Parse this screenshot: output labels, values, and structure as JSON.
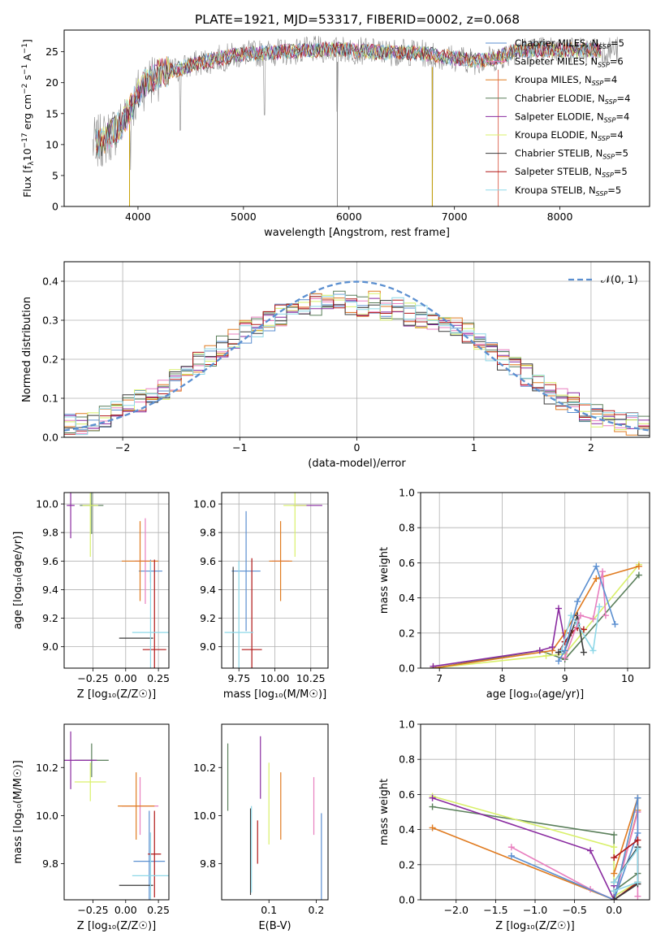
{
  "figure_title": "PLATE=1921, MJD=53317, FIBERID=0002, z=0.068",
  "colors": {
    "c1": "#5b8fd0",
    "c2": "#e87fbf",
    "c3": "#e07b20",
    "c4": "#5a7f5a",
    "c5": "#8a2ba0",
    "c6": "#d9f06a",
    "c7": "#3a3a3a",
    "c8": "#b01818",
    "c9": "#8ed8e8",
    "gauss": "#5b8fd0",
    "grid": "#b0b0b0",
    "spec": "#8a8a8a"
  },
  "chart_data": [
    {
      "id": "spectrum",
      "type": "line",
      "title": "PLATE=1921, MJD=53317, FIBERID=0002, z=0.068",
      "xlabel": "wavelength [Angstrom, rest frame]",
      "ylabel_main": "Flux [f",
      "ylabel_sub": "λ",
      "ylabel_tail": "10",
      "ylabel_exp1": "−17",
      "ylabel_mid": " erg cm",
      "ylabel_exp2": "−2",
      "ylabel_mid2": " s",
      "ylabel_exp3": "−1",
      "ylabel_end": " A",
      "ylabel_exp4": "−1",
      "ylabel_close": "]",
      "xlim": [
        3300,
        8850
      ],
      "ylim": [
        0,
        28.5
      ],
      "xticks": [
        "4000",
        "5000",
        "6000",
        "7000",
        "8000"
      ],
      "xtick_values": [
        4000,
        5000,
        6000,
        7000,
        8000
      ],
      "yticks": [
        "0",
        "5",
        "10",
        "15",
        "20",
        "25"
      ],
      "ytick_values": [
        0,
        5,
        10,
        15,
        20,
        25
      ],
      "grid": false,
      "legend_position": "top-right",
      "continuum": {
        "x": [
          3580,
          3700,
          3850,
          3950,
          4050,
          4200,
          4400,
          4600,
          4800,
          5000,
          5200,
          5400,
          5600,
          5800,
          6000,
          6200,
          6400,
          6600,
          6800,
          7000,
          7200,
          7400,
          7600
        ],
        "y": [
          10.0,
          11.0,
          13.5,
          16.5,
          19.8,
          21.5,
          22.3,
          23.3,
          24.0,
          24.6,
          24.8,
          25.0,
          25.2,
          25.4,
          25.3,
          25.0,
          24.9,
          24.9,
          24.5,
          24.0,
          23.5,
          24.0,
          25.3
        ]
      },
      "observed_wavelength_range": [
        3570,
        8550
      ],
      "series": [
        {
          "name": "Chabrier MILES",
          "ssp_n": "5",
          "color_key": "c1"
        },
        {
          "name": "Salpeter MILES",
          "ssp_n": "6",
          "color_key": "c2"
        },
        {
          "name": "Kroupa MILES",
          "ssp_n": "4",
          "color_key": "c3"
        },
        {
          "name": "Chabrier ELODIE",
          "ssp_n": "4",
          "color_key": "c4"
        },
        {
          "name": "Salpeter ELODIE",
          "ssp_n": "4",
          "color_key": "c5"
        },
        {
          "name": "Kroupa ELODIE",
          "ssp_n": "4",
          "color_key": "c6"
        },
        {
          "name": "Chabrier STELIB",
          "ssp_n": "5",
          "color_key": "c7"
        },
        {
          "name": "Salpeter STELIB",
          "ssp_n": "5",
          "color_key": "c8"
        },
        {
          "name": "Kroupa STELIB",
          "ssp_n": "5",
          "color_key": "c9"
        }
      ],
      "legend_ssp_label": "N",
      "legend_ssp_sub": "SSP"
    },
    {
      "id": "residuals",
      "type": "step",
      "xlabel": "(data-model)/error",
      "ylabel": "Normed distribution",
      "xlim": [
        -2.5,
        2.5
      ],
      "ylim": [
        0,
        0.45
      ],
      "xticks": [
        "−2",
        "−1",
        "0",
        "1",
        "2"
      ],
      "xtick_values": [
        -2,
        -1,
        0,
        1,
        2
      ],
      "yticks": [
        "0.0",
        "0.1",
        "0.2",
        "0.3",
        "0.4"
      ],
      "ytick_values": [
        0,
        0.1,
        0.2,
        0.3,
        0.4
      ],
      "grid": true,
      "legend_position": "top-right",
      "legend_label": "𝒩(0, 1)",
      "bin_edges_start": -2.5,
      "bin_width": 0.1,
      "base_profile": [
        0.035,
        0.035,
        0.045,
        0.055,
        0.065,
        0.08,
        0.095,
        0.115,
        0.125,
        0.145,
        0.165,
        0.19,
        0.21,
        0.235,
        0.255,
        0.27,
        0.285,
        0.3,
        0.315,
        0.32,
        0.33,
        0.34,
        0.345,
        0.35,
        0.34,
        0.33,
        0.345,
        0.325,
        0.33,
        0.315,
        0.31,
        0.3,
        0.285,
        0.28,
        0.265,
        0.25,
        0.22,
        0.2,
        0.175,
        0.16,
        0.135,
        0.115,
        0.1,
        0.085,
        0.07,
        0.055,
        0.045,
        0.04,
        0.035,
        0.03
      ]
    },
    {
      "id": "age_vs_Z",
      "type": "errorbar",
      "xlabel": "Z [log₁₀(Z/Z☉)]",
      "ylabel": "age  [log₁₀(age/yr)]",
      "xlim": [
        -0.47,
        0.33
      ],
      "ylim": [
        8.85,
        10.08
      ],
      "xticks": [
        "−0.25",
        "0.00",
        "0.25"
      ],
      "xtick_values": [
        -0.25,
        0.0,
        0.25
      ],
      "yticks": [
        "9.0",
        "9.2",
        "9.4",
        "9.6",
        "9.8",
        "10.0"
      ],
      "ytick_values": [
        9.0,
        9.2,
        9.4,
        9.6,
        9.8,
        10.0
      ],
      "grid": true,
      "points": [
        {
          "color_key": "c1",
          "x": 0.19,
          "y": 9.53,
          "xerr": 0.09,
          "yerr": 0.08
        },
        {
          "color_key": "c2",
          "x": 0.15,
          "y": 9.6,
          "xerr": 0.08,
          "yerr": 0.3
        },
        {
          "color_key": "c3",
          "x": 0.11,
          "y": 9.6,
          "xerr": 0.14,
          "yerr": 0.28
        },
        {
          "color_key": "c4",
          "x": -0.26,
          "y": 9.99,
          "xerr": 0.09,
          "yerr": 0.2
        },
        {
          "color_key": "c5",
          "x": -0.42,
          "y": 9.99,
          "xerr": 0.03,
          "yerr": 0.23
        },
        {
          "color_key": "c6",
          "x": -0.27,
          "y": 9.99,
          "xerr": 0.06,
          "yerr": 0.36
        },
        {
          "color_key": "c7",
          "x": 0.08,
          "y": 9.06,
          "xerr": 0.13,
          "yerr": 0.0
        },
        {
          "color_key": "c8",
          "x": 0.22,
          "y": 8.98,
          "xerr": 0.09,
          "yerr": 0.63
        },
        {
          "color_key": "c9",
          "x": 0.19,
          "y": 9.1,
          "xerr": 0.14,
          "yerr": 0.5
        }
      ]
    },
    {
      "id": "age_vs_mass",
      "type": "errorbar",
      "xlabel": "mass [log₁₀(M/M☉)]",
      "xlim": [
        9.63,
        10.37
      ],
      "ylim": [
        8.85,
        10.08
      ],
      "xticks": [
        "9.75",
        "10.00",
        "10.25"
      ],
      "xtick_values": [
        9.75,
        10.0,
        10.25
      ],
      "yticks": [
        "9.0",
        "9.2",
        "9.4",
        "9.6",
        "9.8",
        "10.0"
      ],
      "ytick_values": [
        9.0,
        9.2,
        9.4,
        9.6,
        9.8,
        10.0
      ],
      "grid": true,
      "points": [
        {
          "color_key": "c1",
          "x": 9.8,
          "y": 9.53,
          "xerr": 0.1,
          "yerr": 0.42
        },
        {
          "color_key": "c2",
          "x": 10.04,
          "y": 9.6,
          "xerr": 0.06,
          "yerr": 0.0
        },
        {
          "color_key": "c3",
          "x": 10.04,
          "y": 9.6,
          "xerr": 0.08,
          "yerr": 0.28
        },
        {
          "color_key": "c4",
          "x": 10.23,
          "y": 9.99,
          "xerr": 0.0,
          "yerr": 0.0
        },
        {
          "color_key": "c5",
          "x": 10.23,
          "y": 9.99,
          "xerr": 0.1,
          "yerr": 0.0
        },
        {
          "color_key": "c6",
          "x": 10.14,
          "y": 9.99,
          "xerr": 0.08,
          "yerr": 0.36
        },
        {
          "color_key": "c7",
          "x": 9.71,
          "y": 9.06,
          "xerr": 0.0,
          "yerr": 0.5
        },
        {
          "color_key": "c8",
          "x": 9.84,
          "y": 8.98,
          "xerr": 0.07,
          "yerr": 0.64
        },
        {
          "color_key": "c9",
          "x": 9.75,
          "y": 9.1,
          "xerr": 0.1,
          "yerr": 0.5
        }
      ]
    },
    {
      "id": "weight_vs_age",
      "type": "line",
      "xlabel": "age  [log₁₀(age/yr)]",
      "ylabel": "mass weight",
      "xlim": [
        6.7,
        10.35
      ],
      "ylim": [
        0,
        1.0
      ],
      "xticks": [
        "7",
        "8",
        "9",
        "10"
      ],
      "xtick_values": [
        7,
        8,
        9,
        10
      ],
      "yticks": [
        "0.0",
        "0.2",
        "0.4",
        "0.6",
        "0.8",
        "1.0"
      ],
      "ytick_values": [
        0,
        0.2,
        0.4,
        0.6,
        0.8,
        1.0
      ],
      "grid": true,
      "series": [
        {
          "color_key": "c4",
          "x": [
            6.9,
            8.6,
            9.0,
            10.18
          ],
          "y": [
            0.0,
            0.1,
            0.05,
            0.53
          ]
        },
        {
          "color_key": "c6",
          "x": [
            6.9,
            8.7,
            9.0,
            10.18
          ],
          "y": [
            0.0,
            0.07,
            0.08,
            0.59
          ]
        },
        {
          "color_key": "c3",
          "x": [
            6.9,
            8.8,
            9.0,
            9.5,
            10.18
          ],
          "y": [
            0.0,
            0.1,
            0.2,
            0.51,
            0.58
          ]
        },
        {
          "color_key": "c5",
          "x": [
            6.9,
            8.6,
            8.8,
            8.9,
            9.0
          ],
          "y": [
            0.01,
            0.1,
            0.12,
            0.34,
            0.15
          ]
        },
        {
          "color_key": "c8",
          "x": [
            8.9,
            9.0,
            9.1,
            9.2,
            9.3
          ],
          "y": [
            0.09,
            0.15,
            0.2,
            0.23,
            0.22
          ]
        },
        {
          "color_key": "c7",
          "x": [
            8.9,
            9.0,
            9.2,
            9.3
          ],
          "y": [
            0.09,
            0.1,
            0.3,
            0.09
          ]
        },
        {
          "color_key": "c9",
          "x": [
            8.95,
            9.1,
            9.2,
            9.45,
            9.55
          ],
          "y": [
            0.1,
            0.3,
            0.25,
            0.1,
            0.35
          ]
        },
        {
          "color_key": "c2",
          "x": [
            9.0,
            9.25,
            9.45,
            9.6,
            9.65
          ],
          "y": [
            0.06,
            0.3,
            0.28,
            0.55,
            0.3
          ]
        },
        {
          "color_key": "c1",
          "x": [
            8.9,
            9.0,
            9.2,
            9.5,
            9.8
          ],
          "y": [
            0.04,
            0.1,
            0.38,
            0.58,
            0.25
          ]
        }
      ]
    },
    {
      "id": "mass_vs_Z",
      "type": "errorbar",
      "xlabel": "Z [log₁₀(Z/Z☉)]",
      "ylabel": "mass [log₁₀(M/M☉)]",
      "xlim": [
        -0.47,
        0.33
      ],
      "ylim": [
        9.65,
        10.38
      ],
      "xticks": [
        "−0.25",
        "0.00",
        "0.25"
      ],
      "xtick_values": [
        -0.25,
        0.0,
        0.25
      ],
      "yticks": [
        "9.8",
        "10.0",
        "10.2"
      ],
      "ytick_values": [
        9.8,
        10.0,
        10.2
      ],
      "grid": false,
      "points": [
        {
          "color_key": "c1",
          "x": 0.18,
          "y": 9.81,
          "xerr": 0.12,
          "yerr": 0.21
        },
        {
          "color_key": "c2",
          "x": 0.11,
          "y": 10.04,
          "xerr": 0.14,
          "yerr": 0.12
        },
        {
          "color_key": "c3",
          "x": 0.08,
          "y": 10.04,
          "xerr": 0.14,
          "yerr": 0.14
        },
        {
          "color_key": "c4",
          "x": -0.26,
          "y": 10.23,
          "xerr": 0.13,
          "yerr": 0.07
        },
        {
          "color_key": "c5",
          "x": -0.42,
          "y": 10.23,
          "xerr": 0.2,
          "yerr": 0.12
        },
        {
          "color_key": "c6",
          "x": -0.27,
          "y": 10.14,
          "xerr": 0.12,
          "yerr": 0.08
        },
        {
          "color_key": "c7",
          "x": 0.08,
          "y": 9.71,
          "xerr": 0.13,
          "yerr": 0.0
        },
        {
          "color_key": "c8",
          "x": 0.22,
          "y": 9.84,
          "xerr": 0.05,
          "yerr": 0.18
        },
        {
          "color_key": "c9",
          "x": 0.19,
          "y": 9.75,
          "xerr": 0.14,
          "yerr": 0.18
        }
      ]
    },
    {
      "id": "mass_vs_ebv",
      "type": "errorbar",
      "xlabel": "E(B-V)",
      "xlim": [
        0.0,
        0.225
      ],
      "ylim": [
        9.65,
        10.38
      ],
      "xticks": [
        "0.1",
        "0.2"
      ],
      "xtick_values": [
        0.1,
        0.2
      ],
      "yticks": [
        "9.8",
        "10.0",
        "10.2"
      ],
      "ytick_values": [
        9.8,
        10.0,
        10.2
      ],
      "grid": false,
      "points": [
        {
          "color_key": "c1",
          "x": 0.211,
          "y": 9.81,
          "xerr": 0,
          "yerr": 0.2
        },
        {
          "color_key": "c2",
          "x": 0.195,
          "y": 10.04,
          "xerr": 0,
          "yerr": 0.12
        },
        {
          "color_key": "c3",
          "x": 0.125,
          "y": 10.04,
          "xerr": 0,
          "yerr": 0.14
        },
        {
          "color_key": "c4",
          "x": 0.013,
          "y": 10.16,
          "xerr": 0,
          "yerr": 0.14
        },
        {
          "color_key": "c5",
          "x": 0.082,
          "y": 10.2,
          "xerr": 0,
          "yerr": 0.13
        },
        {
          "color_key": "c6",
          "x": 0.1,
          "y": 10.05,
          "xerr": 0,
          "yerr": 0.17
        },
        {
          "color_key": "c7",
          "x": 0.061,
          "y": 9.85,
          "xerr": 0,
          "yerr": 0.18
        },
        {
          "color_key": "c8",
          "x": 0.076,
          "y": 9.89,
          "xerr": 0,
          "yerr": 0.09
        },
        {
          "color_key": "c9",
          "x": 0.063,
          "y": 9.86,
          "xerr": 0,
          "yerr": 0.18
        }
      ]
    },
    {
      "id": "weight_vs_Z",
      "type": "line",
      "xlabel": "Z [log₁₀(Z/Z☉)]",
      "ylabel": "mass weight",
      "xlim": [
        -2.45,
        0.45
      ],
      "ylim": [
        0,
        1.0
      ],
      "xticks": [
        "−2.0",
        "−1.5",
        "−1.0",
        "−0.5",
        "0.0"
      ],
      "xtick_values": [
        -2.0,
        -1.5,
        -1.0,
        -0.5,
        0.0
      ],
      "yticks": [
        "0.0",
        "0.2",
        "0.4",
        "0.6",
        "0.8",
        "1.0"
      ],
      "ytick_values": [
        0,
        0.2,
        0.4,
        0.6,
        0.8,
        1.0
      ],
      "grid": true,
      "series": [
        {
          "color_key": "c4",
          "x": [
            -2.3,
            0.0,
            0.0,
            0.3
          ],
          "y": [
            0.53,
            0.37,
            0.05,
            0.15
          ]
        },
        {
          "color_key": "c6",
          "x": [
            -2.3,
            0.0,
            0.0,
            0.3
          ],
          "y": [
            0.59,
            0.3,
            0.02,
            0.1
          ]
        },
        {
          "color_key": "c3",
          "x": [
            -2.3,
            0.0,
            0.3,
            0.3,
            0.0
          ],
          "y": [
            0.41,
            0.0,
            0.51,
            0.58,
            0.15
          ]
        },
        {
          "color_key": "c5",
          "x": [
            -2.3,
            -0.3,
            0.0,
            0.0
          ],
          "y": [
            0.58,
            0.28,
            0.0,
            0.08
          ]
        },
        {
          "color_key": "c2",
          "x": [
            -1.3,
            -0.3,
            0.0,
            0.3,
            0.3
          ],
          "y": [
            0.3,
            0.06,
            0.0,
            0.5,
            0.02
          ]
        },
        {
          "color_key": "c1",
          "x": [
            -1.3,
            0.0,
            0.3,
            0.3,
            0.0
          ],
          "y": [
            0.25,
            0.0,
            0.38,
            0.58,
            0.0
          ]
        },
        {
          "color_key": "c8",
          "x": [
            0.0,
            0.3,
            0.3,
            0.0
          ],
          "y": [
            0.24,
            0.34,
            0.1,
            0.0
          ]
        },
        {
          "color_key": "c7",
          "x": [
            0.0,
            0.3,
            0.3,
            0.0
          ],
          "y": [
            0.0,
            0.09,
            0.3,
            0.1
          ]
        },
        {
          "color_key": "c9",
          "x": [
            0.0,
            0.3,
            0.3,
            0.0
          ],
          "y": [
            0.1,
            0.29,
            0.1,
            0.05
          ]
        }
      ]
    }
  ]
}
